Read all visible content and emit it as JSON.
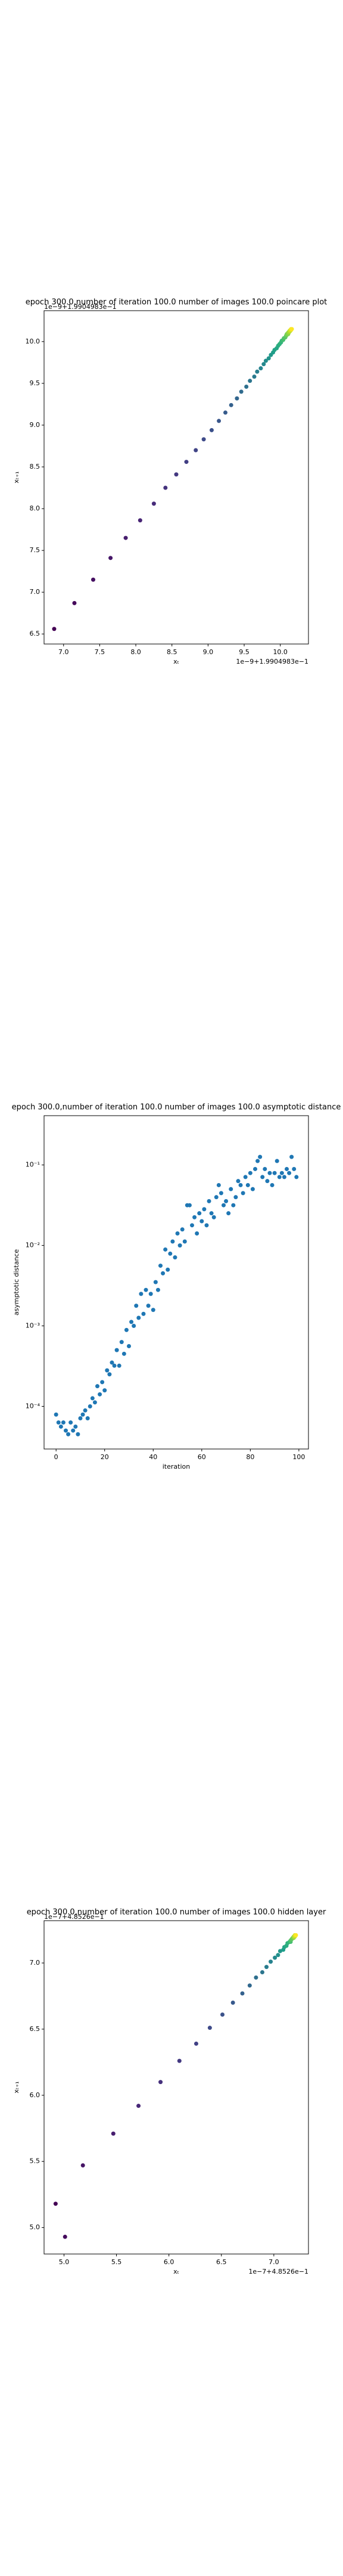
{
  "chart_data": [
    {
      "type": "scatter",
      "title": "epoch 300.0,number of iteration 100.0 number of images 100.0 poincare plot",
      "xlabel": "xₜ",
      "ylabel": "xₜ₊₁",
      "x_offset": "1e−9+1.9904983e−1",
      "y_offset": "1e−9+1.9904983e−1",
      "colormap": "viridis",
      "x": [
        6.87,
        7.15,
        7.41,
        7.65,
        7.86,
        8.06,
        8.25,
        8.41,
        8.56,
        8.7,
        8.83,
        8.94,
        9.05,
        9.15,
        9.24,
        9.32,
        9.4,
        9.46,
        9.53,
        9.58,
        9.64,
        9.68,
        9.73,
        9.77,
        9.8,
        9.84,
        9.87,
        9.9,
        9.92,
        9.95,
        9.97,
        9.99,
        10.01,
        10.02,
        10.04,
        10.05,
        10.07,
        10.08,
        10.09,
        10.09,
        10.11,
        10.11,
        10.12,
        10.13,
        10.13,
        10.14,
        10.14,
        10.15,
        10.15,
        10.16
      ],
      "values": [
        6.56,
        6.87,
        7.15,
        7.41,
        7.65,
        7.86,
        8.06,
        8.25,
        8.41,
        8.56,
        8.7,
        8.83,
        8.94,
        9.05,
        9.15,
        9.24,
        9.32,
        9.4,
        9.46,
        9.53,
        9.58,
        9.64,
        9.68,
        9.73,
        9.77,
        9.8,
        9.84,
        9.87,
        9.9,
        9.92,
        9.95,
        9.97,
        9.99,
        10.01,
        10.02,
        10.04,
        10.05,
        10.07,
        10.08,
        10.09,
        10.09,
        10.11,
        10.11,
        10.12,
        10.13,
        10.13,
        10.14,
        10.14,
        10.15,
        10.15
      ],
      "xlim": [
        6.73,
        10.39
      ],
      "ylim": [
        6.38,
        10.37
      ],
      "xticks": [
        {
          "value": 7,
          "label": "7.0"
        },
        7.5,
        {
          "value": 8,
          "label": "8.0"
        },
        8.5,
        {
          "value": 9,
          "label": "9.0"
        },
        9.5,
        {
          "value": 10,
          "label": "10.0"
        }
      ],
      "yticks": [
        6.5,
        {
          "value": 7,
          "label": "7.0"
        },
        7.5,
        {
          "value": 8,
          "label": "8.0"
        },
        8.5,
        {
          "value": 9,
          "label": "9.0"
        },
        9.5,
        {
          "value": 10,
          "label": "10.0"
        }
      ]
    },
    {
      "type": "scatter",
      "title": "epoch 300.0,number of iteration 100.0  number of images 100.0 asymptotic distance",
      "xlabel": "iteration",
      "ylabel": "asymptotic distance",
      "color": "#1f77b4",
      "log_y": true,
      "x": [
        0,
        1,
        2,
        3,
        4,
        5,
        6,
        7,
        8,
        9,
        10,
        11,
        12,
        13,
        14,
        15,
        16,
        17,
        18,
        19,
        20,
        21,
        22,
        23,
        24,
        25,
        26,
        27,
        28,
        29,
        30,
        31,
        32,
        33,
        34,
        35,
        36,
        37,
        38,
        39,
        40,
        41,
        42,
        43,
        44,
        45,
        46,
        47,
        48,
        49,
        50,
        51,
        52,
        53,
        54,
        55,
        56,
        57,
        58,
        59,
        60,
        61,
        62,
        63,
        64,
        65,
        66,
        67,
        68,
        69,
        70,
        71,
        72,
        73,
        74,
        75,
        76,
        77,
        78,
        79,
        80,
        81,
        82,
        83,
        84,
        85,
        86,
        87,
        88,
        89,
        90,
        91,
        92,
        93,
        94,
        95,
        96,
        97,
        98,
        99
      ],
      "values": [
        7.9e-05,
        6.3e-05,
        5.6e-05,
        6.3e-05,
        5e-05,
        4.5e-05,
        6.3e-05,
        5e-05,
        5.6e-05,
        4.5e-05,
        7.1e-05,
        7.9e-05,
        8.9e-05,
        7.1e-05,
        0.0001,
        0.000126,
        0.000112,
        0.000178,
        0.000141,
        0.0002,
        0.000158,
        0.00028,
        0.00025,
        0.00035,
        0.00032,
        0.0005,
        0.00032,
        0.00063,
        0.00045,
        0.00089,
        0.00056,
        0.00112,
        0.001,
        0.00178,
        0.00126,
        0.0025,
        0.00141,
        0.0028,
        0.00178,
        0.0025,
        0.00158,
        0.0035,
        0.0028,
        0.0056,
        0.0045,
        0.0089,
        0.005,
        0.0079,
        0.0112,
        0.0071,
        0.0141,
        0.01,
        0.0158,
        0.0112,
        0.0316,
        0.0316,
        0.0178,
        0.0224,
        0.0141,
        0.0251,
        0.02,
        0.0282,
        0.0178,
        0.0355,
        0.0251,
        0.0224,
        0.0398,
        0.0562,
        0.0447,
        0.0316,
        0.0355,
        0.0251,
        0.0501,
        0.0316,
        0.0398,
        0.0631,
        0.0562,
        0.0447,
        0.0708,
        0.0562,
        0.0794,
        0.0501,
        0.0891,
        0.112,
        0.126,
        0.0708,
        0.0891,
        0.0631,
        0.0794,
        0.0562,
        0.0794,
        0.112,
        0.0708,
        0.0794,
        0.0708,
        0.0891,
        0.0794,
        0.126,
        0.0891,
        0.0708
      ],
      "xlim": [
        -4.95,
        103.95
      ],
      "ylim": [
        2.95e-05,
        0.41
      ],
      "xticks": [
        0,
        20,
        40,
        60,
        80,
        100
      ],
      "yticks": [
        {
          "value": 0.0001,
          "label": "10⁻⁴"
        },
        {
          "value": 0.001,
          "label": "10⁻³"
        },
        {
          "value": 0.01,
          "label": "10⁻²"
        },
        {
          "value": 0.1,
          "label": "10⁻¹"
        }
      ]
    },
    {
      "type": "scatter",
      "title": "epoch 300.0,number of iteration 100.0  number of images 100.0 hidden layer",
      "xlabel": "xₜ",
      "ylabel": "xₜ₊₁",
      "x_offset": "1e−7+4.8526e−1",
      "y_offset": "1e−7+4.8526e−1",
      "colormap": "viridis",
      "x": [
        4.92,
        5.01,
        5.18,
        5.47,
        5.71,
        5.92,
        6.1,
        6.26,
        6.39,
        6.51,
        6.61,
        6.7,
        6.77,
        6.83,
        6.89,
        6.93,
        6.97,
        7.01,
        7.04,
        7.06,
        7.09,
        7.1,
        7.12,
        7.13,
        7.15,
        7.16,
        7.16,
        7.17,
        7.18,
        7.19,
        7.19,
        7.19,
        7.2,
        7.2,
        7.2,
        7.21,
        7.21
      ],
      "values": [
        5.18,
        4.93,
        5.47,
        5.71,
        5.92,
        6.1,
        6.26,
        6.39,
        6.51,
        6.61,
        6.7,
        6.77,
        6.83,
        6.89,
        6.93,
        6.97,
        7.01,
        7.04,
        7.06,
        7.09,
        7.1,
        7.12,
        7.13,
        7.15,
        7.16,
        7.16,
        7.17,
        7.18,
        7.19,
        7.19,
        7.19,
        7.2,
        7.2,
        7.2,
        7.21,
        7.21,
        7.21
      ],
      "xlim": [
        4.81,
        7.33
      ],
      "ylim": [
        4.8,
        7.32
      ],
      "xticks": [
        {
          "value": 5,
          "label": "5.0"
        },
        5.5,
        {
          "value": 6,
          "label": "6.0"
        },
        6.5,
        {
          "value": 7,
          "label": "7.0"
        }
      ],
      "yticks": [
        {
          "value": 5,
          "label": "5.0"
        },
        5.5,
        {
          "value": 6,
          "label": "6.0"
        },
        6.5,
        {
          "value": 7,
          "label": "7.0"
        }
      ]
    }
  ]
}
